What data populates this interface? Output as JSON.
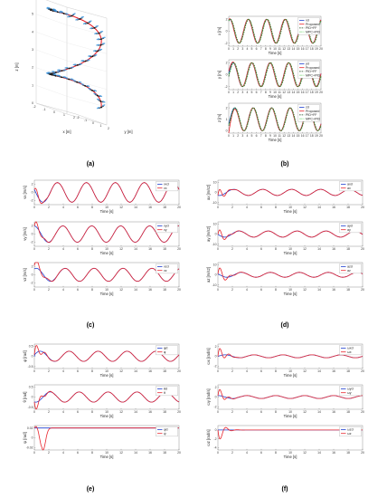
{
  "captions": [
    "(a)",
    "(b)",
    "(c)",
    "(d)",
    "(e)",
    "(f)"
  ],
  "colors": {
    "reference": "#1f3fd0",
    "actual": "#e8242c",
    "pidff": "#1a4a1a",
    "mpcpid": "#3cc83c",
    "quad": "#2a8ad8"
  },
  "chart_data": [
    {
      "type": "line3d",
      "panel": "a",
      "xlabel": "x [m]",
      "ylabel": "y [m]",
      "zlabel": "z [m]",
      "xticks": [
        "-2",
        "-1",
        "0",
        "1",
        "2"
      ],
      "yticks": [
        "-2",
        "-1",
        "0",
        "1",
        "2"
      ],
      "zticks": [
        "0",
        "1",
        "2",
        "3",
        "4",
        "5",
        "6"
      ],
      "zlim": [
        0,
        6
      ],
      "series": [
        {
          "name": "",
          "shape": "helix-trajectory"
        }
      ],
      "markers": "quadrotor-icons"
    },
    {
      "type": "line",
      "panel": "b",
      "xlabel": "Time [s]",
      "xticks": [
        "0",
        "1",
        "2",
        "3",
        "4",
        "5",
        "6",
        "7",
        "8",
        "9",
        "10",
        "11",
        "12",
        "13",
        "14",
        "15",
        "16",
        "17",
        "18",
        "19",
        "20"
      ],
      "xlim": [
        0,
        20
      ],
      "subplots": [
        {
          "ylabel": "x [m]",
          "yticks": [
            "2",
            "0",
            "-2"
          ],
          "ylim": [
            -2.5,
            2.5
          ],
          "series": [
            {
              "name": "xd"
            },
            {
              "name": "Proposed"
            },
            {
              "name": "PID+FF"
            },
            {
              "name": "MPC+PID"
            }
          ]
        },
        {
          "ylabel": "y [m]",
          "yticks": [
            "2",
            "0",
            "-2"
          ],
          "ylim": [
            -2.5,
            2.5
          ],
          "series": [
            {
              "name": "yd"
            },
            {
              "name": "Proposed"
            },
            {
              "name": "PID+FF"
            },
            {
              "name": "MPC+PID"
            }
          ]
        },
        {
          "ylabel": "z [m]",
          "yticks": [
            "2",
            "1",
            "0"
          ],
          "ylim": [
            -0.2,
            2.4
          ],
          "series": [
            {
              "name": "zd"
            },
            {
              "name": "Proposed"
            },
            {
              "name": "PID+FF"
            },
            {
              "name": "MPC+PID"
            }
          ]
        }
      ]
    },
    {
      "type": "line",
      "panel": "c",
      "xlabel": "Time [s]",
      "xticks": [
        "0",
        "2",
        "4",
        "6",
        "8",
        "10",
        "12",
        "14",
        "16",
        "18",
        "20"
      ],
      "xlim": [
        0,
        20
      ],
      "subplots": [
        {
          "ylabel": "vx [m/s]",
          "yticks": [
            "2",
            "0",
            "-2"
          ],
          "ylim": [
            -3,
            3
          ],
          "series": [
            {
              "name": "vxd"
            },
            {
              "name": "vx"
            }
          ]
        },
        {
          "ylabel": "vy [m/s]",
          "yticks": [
            "2",
            "0",
            "-2"
          ],
          "ylim": [
            -3,
            3
          ],
          "series": [
            {
              "name": "vyd"
            },
            {
              "name": "vy"
            }
          ]
        },
        {
          "ylabel": "vz [m/s]",
          "yticks": [
            "2",
            "0",
            "-2"
          ],
          "ylim": [
            -3,
            3
          ],
          "series": [
            {
              "name": "vzd"
            },
            {
              "name": "vz"
            }
          ]
        }
      ]
    },
    {
      "type": "line",
      "panel": "d",
      "xlabel": "Time [s]",
      "xticks": [
        "0",
        "2",
        "4",
        "6",
        "8",
        "10",
        "12",
        "14",
        "16",
        "18",
        "20"
      ],
      "xlim": [
        0,
        20
      ],
      "subplots": [
        {
          "ylabel": "ax [m/s2]",
          "yticks": [
            "10",
            "0",
            "-10"
          ],
          "ylim": [
            -12,
            12
          ],
          "series": [
            {
              "name": "axd"
            },
            {
              "name": "ax"
            }
          ]
        },
        {
          "ylabel": "ay [m/s2]",
          "yticks": [
            "10",
            "0",
            "-10"
          ],
          "ylim": [
            -12,
            12
          ],
          "series": [
            {
              "name": "ayd"
            },
            {
              "name": "ay"
            }
          ]
        },
        {
          "ylabel": "az [m/s2]",
          "yticks": [
            "10",
            "0",
            "-10"
          ],
          "ylim": [
            -12,
            12
          ],
          "series": [
            {
              "name": "azd"
            },
            {
              "name": "az"
            }
          ]
        }
      ]
    },
    {
      "type": "line",
      "panel": "e",
      "xlabel": "Time [s]",
      "xticks": [
        "0",
        "2",
        "4",
        "6",
        "8",
        "10",
        "12",
        "14",
        "16",
        "18",
        "20"
      ],
      "xlim": [
        0,
        20
      ],
      "subplots": [
        {
          "ylabel": "φ [rad]",
          "yticks": [
            "0.5",
            "0",
            "-0.5"
          ],
          "ylim": [
            -0.6,
            0.6
          ],
          "series": [
            {
              "name": "φd"
            },
            {
              "name": "φ"
            }
          ]
        },
        {
          "ylabel": "θ [rad]",
          "yticks": [
            "0.5",
            "0",
            "-0.5"
          ],
          "ylim": [
            -0.6,
            0.6
          ],
          "series": [
            {
              "name": "θd"
            },
            {
              "name": "θ"
            }
          ]
        },
        {
          "ylabel": "ψ [rad]",
          "yticks": [
            "0.02",
            "0",
            "-0.02"
          ],
          "ylim": [
            -0.025,
            0.025
          ],
          "series": [
            {
              "name": "ψd"
            },
            {
              "name": "ψ"
            }
          ]
        }
      ]
    },
    {
      "type": "line",
      "panel": "f",
      "xlabel": "Time [s]",
      "xticks": [
        "0",
        "2",
        "4",
        "6",
        "8",
        "10",
        "12",
        "14",
        "16",
        "18",
        "20"
      ],
      "xlim": [
        0,
        20
      ],
      "subplots": [
        {
          "ylabel": "ωx [rad/s]",
          "yticks": [
            "2",
            "0",
            "-2"
          ],
          "ylim": [
            -2.5,
            2.5
          ],
          "series": [
            {
              "name": "ωxd"
            },
            {
              "name": "ωx"
            }
          ]
        },
        {
          "ylabel": "ωy [rad/s]",
          "yticks": [
            "2",
            "0",
            "-2"
          ],
          "ylim": [
            -2.5,
            2.5
          ],
          "series": [
            {
              "name": "ωyd"
            },
            {
              "name": "ωy"
            }
          ]
        },
        {
          "ylabel": "ωz [rad/s]",
          "yticks": [
            "0",
            "-2",
            "-4"
          ],
          "ylim": [
            -4.5,
            1
          ],
          "series": [
            {
              "name": "ωzd"
            },
            {
              "name": "ωz"
            }
          ]
        }
      ]
    }
  ]
}
